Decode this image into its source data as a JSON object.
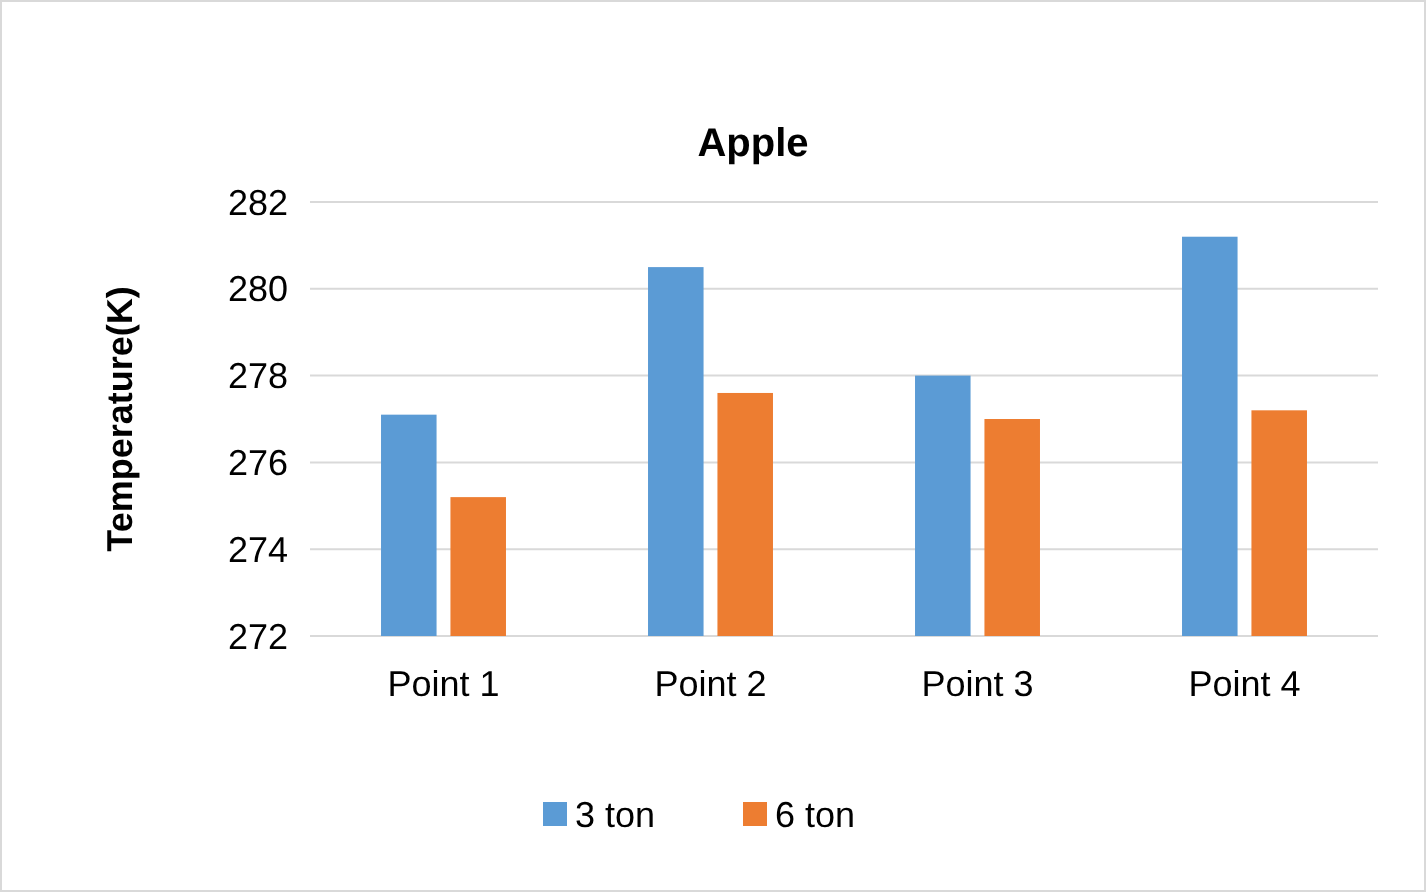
{
  "chart_data": {
    "type": "bar",
    "title": "Apple",
    "ylabel": "Temperature(K)",
    "categories": [
      "Point 1",
      "Point 2",
      "Point 3",
      "Point 4"
    ],
    "series": [
      {
        "name": "3 ton",
        "color": "#5b9bd5",
        "values": [
          277.1,
          280.5,
          278.0,
          281.2
        ]
      },
      {
        "name": "6 ton",
        "color": "#ed7d31",
        "values": [
          275.2,
          277.6,
          277.0,
          277.2
        ]
      }
    ],
    "ylim": [
      272,
      282
    ],
    "yticks": [
      272,
      274,
      276,
      278,
      280,
      282
    ],
    "grid": "y",
    "legend": "bottom"
  }
}
